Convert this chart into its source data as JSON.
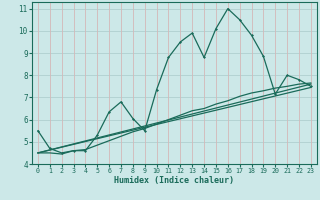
{
  "xlabel": "Humidex (Indice chaleur)",
  "bg_color": "#cce8e8",
  "grid_color_h": "#b0d0d0",
  "grid_color_v": "#d4b8b8",
  "line_color": "#1a6b5a",
  "xlim": [
    -0.5,
    23.5
  ],
  "ylim": [
    4,
    11.3
  ],
  "xticks": [
    0,
    1,
    2,
    3,
    4,
    5,
    6,
    7,
    8,
    9,
    10,
    11,
    12,
    13,
    14,
    15,
    16,
    17,
    18,
    19,
    20,
    21,
    22,
    23
  ],
  "yticks": [
    4,
    5,
    6,
    7,
    8,
    9,
    10,
    11
  ],
  "curve1_x": [
    0,
    1,
    2,
    3,
    4,
    5,
    6,
    7,
    8,
    9,
    10,
    11,
    12,
    13,
    14,
    15,
    16,
    17,
    18,
    19,
    20,
    21,
    22,
    23
  ],
  "curve1_y": [
    5.5,
    4.7,
    4.5,
    4.6,
    4.6,
    5.3,
    6.35,
    6.8,
    6.05,
    5.5,
    7.35,
    8.8,
    9.5,
    9.9,
    8.8,
    10.1,
    11.0,
    10.5,
    9.8,
    8.85,
    7.15,
    8.0,
    7.8,
    7.5
  ],
  "curve2_x": [
    0,
    1,
    2,
    3,
    4,
    5,
    6,
    7,
    8,
    9,
    10,
    11,
    12,
    13,
    14,
    15,
    16,
    17,
    18,
    19,
    20,
    21,
    22,
    23
  ],
  "curve2_y": [
    4.5,
    4.5,
    4.45,
    4.6,
    4.65,
    4.85,
    5.05,
    5.25,
    5.45,
    5.6,
    5.8,
    6.0,
    6.2,
    6.4,
    6.5,
    6.7,
    6.85,
    7.05,
    7.2,
    7.3,
    7.42,
    7.5,
    7.6,
    7.65
  ],
  "line1_x": [
    0,
    23
  ],
  "line1_y": [
    4.5,
    7.45
  ],
  "line2_x": [
    0,
    23
  ],
  "line2_y": [
    4.5,
    7.6
  ]
}
